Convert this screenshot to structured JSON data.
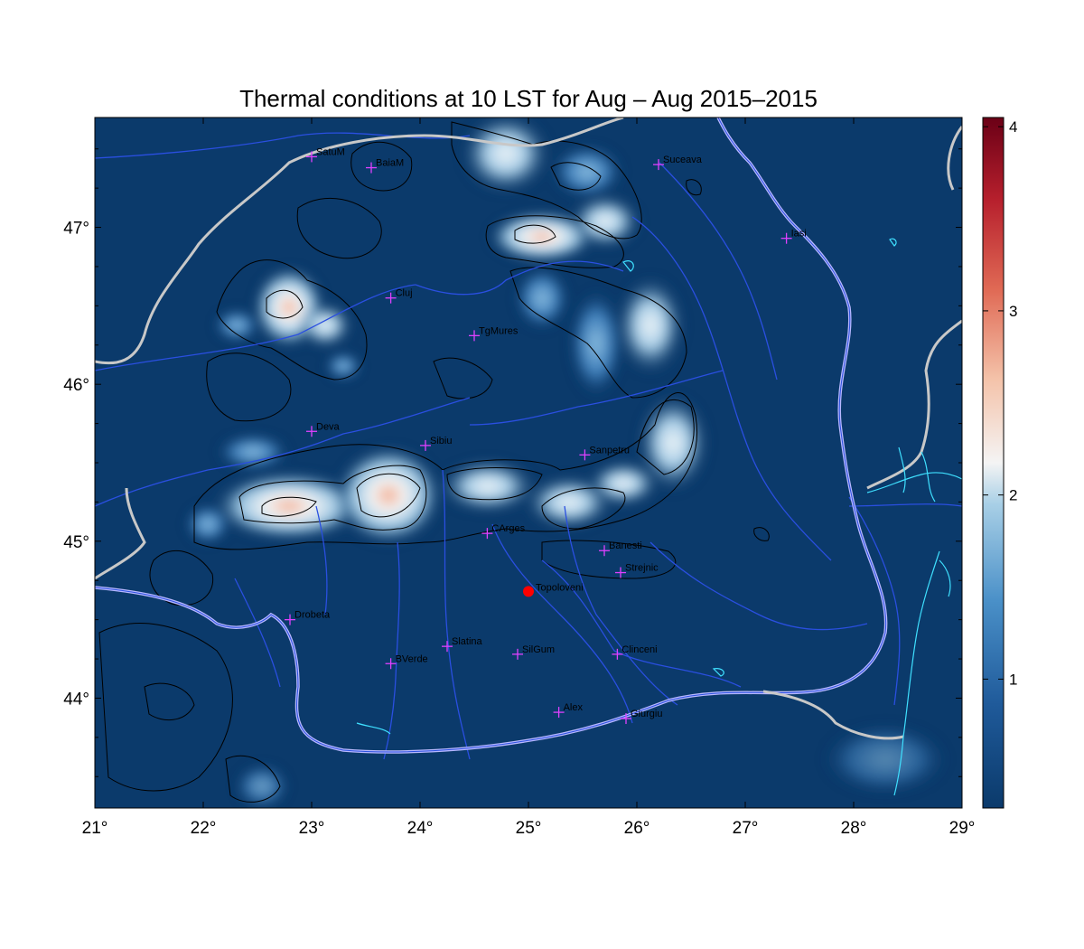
{
  "title": "Thermal conditions at 10 LST for Aug – Aug  2015–2015",
  "colors": {
    "background": "#0b3a6b",
    "border_gray": "#c8c8c8",
    "border_light": "#b8b8ff",
    "river": "#2a4fe0",
    "lake": "#3fe0ff",
    "contour": "#000000",
    "city_marker": "#e040ff",
    "highlight_marker": "#ff0000"
  },
  "map_data": {
    "xlim": [
      21,
      29
    ],
    "ylim": [
      43.3,
      47.7
    ],
    "x_ticks": [
      21,
      22,
      23,
      24,
      25,
      26,
      27,
      28,
      29
    ],
    "y_ticks": [
      44,
      45,
      46,
      47
    ],
    "x_tick_labels": [
      "21°",
      "22°",
      "23°",
      "24°",
      "25°",
      "26°",
      "27°",
      "28°",
      "29°"
    ],
    "y_tick_labels": [
      "44°",
      "45°",
      "46°",
      "47°"
    ],
    "colorbar": {
      "range": [
        0.3,
        4.05
      ],
      "ticks": [
        1,
        2,
        3,
        4
      ],
      "tick_labels": [
        "1",
        "2",
        "3",
        "4"
      ],
      "colormap": "RdBu_r"
    },
    "cities": [
      {
        "name": "SatuM",
        "lon": 23.0,
        "lat": 47.45
      },
      {
        "name": "BaiaM",
        "lon": 23.55,
        "lat": 47.38
      },
      {
        "name": "Suceava",
        "lon": 26.2,
        "lat": 47.4
      },
      {
        "name": "Iasi",
        "lon": 27.38,
        "lat": 46.93
      },
      {
        "name": "Cluj",
        "lon": 23.73,
        "lat": 46.55
      },
      {
        "name": "TgMures",
        "lon": 24.5,
        "lat": 46.31
      },
      {
        "name": "Deva",
        "lon": 23.0,
        "lat": 45.7
      },
      {
        "name": "Sibiu",
        "lon": 24.05,
        "lat": 45.61
      },
      {
        "name": "Sanpetru",
        "lon": 25.52,
        "lat": 45.55
      },
      {
        "name": "CArges",
        "lon": 24.62,
        "lat": 45.05
      },
      {
        "name": "Banesti",
        "lon": 25.7,
        "lat": 44.94
      },
      {
        "name": "Strejnic",
        "lon": 25.85,
        "lat": 44.8
      },
      {
        "name": "Drobeta",
        "lon": 22.8,
        "lat": 44.5
      },
      {
        "name": "Slatina",
        "lon": 24.25,
        "lat": 44.33
      },
      {
        "name": "SilGum",
        "lon": 24.9,
        "lat": 44.28
      },
      {
        "name": "Clinceni",
        "lon": 25.82,
        "lat": 44.28
      },
      {
        "name": "BVerde",
        "lon": 23.73,
        "lat": 44.22
      },
      {
        "name": "Alex",
        "lon": 25.28,
        "lat": 43.91
      },
      {
        "name": "Giurgiu",
        "lon": 25.9,
        "lat": 43.87
      }
    ],
    "highlight_city": {
      "name": "Topoloveni",
      "lon": 25.0,
      "lat": 44.68
    },
    "thermal_hotspots": [
      {
        "lon": 22.85,
        "lat": 45.22,
        "value": 2.9
      },
      {
        "lon": 23.72,
        "lat": 45.27,
        "value": 2.8
      },
      {
        "lon": 24.58,
        "lat": 45.4,
        "value": 2.3
      },
      {
        "lon": 25.4,
        "lat": 45.2,
        "value": 2.0
      },
      {
        "lon": 22.7,
        "lat": 46.55,
        "value": 2.7
      },
      {
        "lon": 25.12,
        "lat": 46.92,
        "value": 2.9
      },
      {
        "lon": 24.9,
        "lat": 47.55,
        "value": 2.1
      },
      {
        "lon": 25.9,
        "lat": 46.4,
        "value": 1.6
      },
      {
        "lon": 26.1,
        "lat": 45.65,
        "value": 1.4
      }
    ]
  }
}
